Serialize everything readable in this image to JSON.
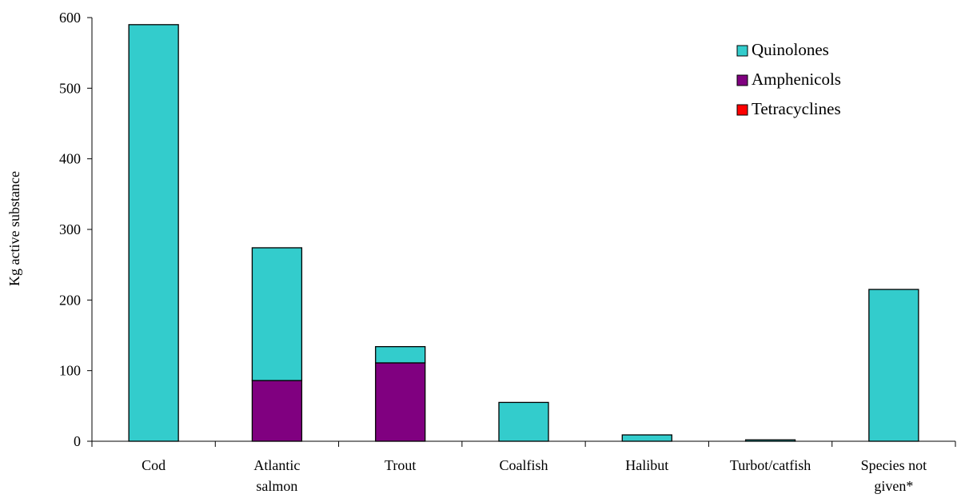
{
  "chart_data": {
    "type": "bar",
    "stacked": true,
    "title": "",
    "xlabel": "",
    "ylabel": "Kg active substance",
    "ylim": [
      0,
      600
    ],
    "yticks": [
      0,
      100,
      200,
      300,
      400,
      500,
      600
    ],
    "categories": [
      [
        "Cod"
      ],
      [
        "Atlantic",
        "salmon"
      ],
      [
        "Trout"
      ],
      [
        "Coalfish"
      ],
      [
        "Halibut"
      ],
      [
        "Turbot/catfish"
      ],
      [
        "Species not",
        "given*"
      ]
    ],
    "series": [
      {
        "name": "Tetracyclines",
        "color": "#ff0000",
        "values": [
          0,
          0,
          0,
          0,
          0,
          0,
          0
        ]
      },
      {
        "name": "Amphenicols",
        "color": "#800080",
        "values": [
          0,
          86,
          111,
          0,
          0,
          0,
          0
        ]
      },
      {
        "name": "Quinolones",
        "color": "#33cccc",
        "values": [
          590,
          188,
          23,
          55,
          9,
          2,
          215
        ]
      }
    ],
    "legend": {
      "position": "top-right",
      "order": [
        "Quinolones",
        "Amphenicols",
        "Tetracyclines"
      ]
    },
    "grid": false
  }
}
